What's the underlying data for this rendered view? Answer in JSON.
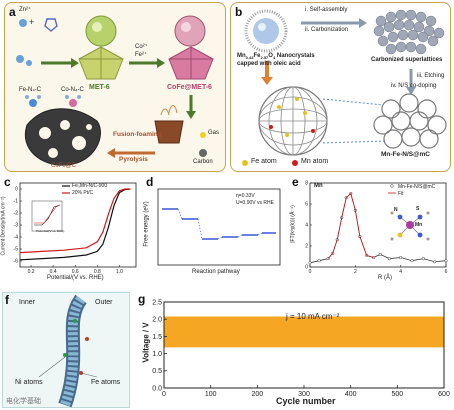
{
  "panels": {
    "a": {
      "label": "a",
      "zn": "Zn²⁺",
      "met6": "MET-6",
      "co_fe": "Co²⁺\nFe²⁺",
      "cofe_met6": "CoFe@MET-6",
      "fe_n4": "Fe-N₄-C",
      "co_n4": "Co-N₄-C",
      "gas": "Gas",
      "carbon": "Carbon",
      "fusion": "Fusion-foaming",
      "pyrolysis": "Pyrolysis",
      "product": "CoFe@C"
    },
    "b": {
      "label": "b",
      "nano_line1": "Mn",
      "nano_sub1": "0.43",
      "nano_mid": "Fe",
      "nano_sub2": "2.57",
      "nano_end": "O",
      "nano_sub3": "4",
      "nano_line2": "Nanocrystals",
      "nano_line3": "capped with oleic acid",
      "step1": "i. Self-assembly",
      "step2": "ii. Carbonization",
      "superlattice": "Carbonized superlattices",
      "step3": "iii. Etching",
      "step4": "iv. N/S co-doping",
      "product": "Mn-Fe-N/S@mC",
      "legend_fe": "Fe atom",
      "legend_mn": "Mn atom",
      "colors": {
        "fe": "#e8c21a",
        "mn": "#d11a1a"
      }
    },
    "c": {
      "label": "c",
      "ylabel": "Current Density/(mA cm⁻²)",
      "xlabel": "Potential/(V vs. RHE)",
      "legend": [
        "Fe₃Mn-N/C-900",
        "20% Pt/C"
      ],
      "xticks": [
        "0.2",
        "0.4",
        "0.6",
        "0.8",
        "1.0"
      ],
      "yticks": [
        "0",
        "-1",
        "-2",
        "-3",
        "-4",
        "-5",
        "-6"
      ],
      "inset_xlabel": "Potential/(V vs. RHE)"
    },
    "d": {
      "label": "d",
      "ylabel": "Free energy (eV)",
      "xlabel": "Reaction pathway",
      "note1": "η=0.33V",
      "note2": "U=0.90V vs RHE"
    },
    "e": {
      "label": "e",
      "element": "Mn",
      "ylabel": "|FT(k³χ(k))| (Å⁻⁴)",
      "xlabel": "R (Å)",
      "legend": [
        "Mn-Fe-N/S@mC",
        "Fit"
      ],
      "xticks": [
        "0",
        "2",
        "4",
        "6"
      ],
      "yticks": [
        "0",
        "2",
        "4",
        "6",
        "8"
      ],
      "atom_n": "N",
      "atom_s": "S",
      "atom_mn": "Mn"
    },
    "f": {
      "label": "f",
      "inner": "Inner",
      "outer": "Outer",
      "ni": "Ni atoms",
      "fe": "Fe atoms"
    },
    "g": {
      "label": "g",
      "ylabel": "Voltage / V",
      "xlabel": "Cycle number",
      "annotation": "j = 10 mA cm⁻²",
      "xticks": [
        "0",
        "100",
        "200",
        "300",
        "400",
        "500",
        "600"
      ],
      "yticks": [
        "0.0",
        "0.5",
        "1.0",
        "1.5",
        "2.0",
        "2.5"
      ],
      "band_color": "#f5a623"
    }
  },
  "watermark": "电化学基础",
  "chart_data": [
    {
      "type": "line",
      "panel": "c",
      "xlabel": "Potential/(V vs. RHE)",
      "ylabel": "Current Density/(mA cm⁻²)",
      "xlim": [
        0.1,
        1.15
      ],
      "ylim": [
        -6.5,
        0.5
      ],
      "series": [
        {
          "name": "Fe₃Mn-N/C-900",
          "x": [
            0.1,
            0.3,
            0.5,
            0.7,
            0.8,
            0.85,
            0.9,
            0.95,
            1.0,
            1.05,
            1.1
          ],
          "y": [
            -5.9,
            -5.8,
            -5.7,
            -5.5,
            -5.2,
            -4.6,
            -3.2,
            -1.4,
            -0.3,
            -0.05,
            0
          ]
        },
        {
          "name": "20% Pt/C",
          "x": [
            0.1,
            0.3,
            0.5,
            0.7,
            0.8,
            0.85,
            0.9,
            0.95,
            1.0,
            1.05,
            1.1
          ],
          "y": [
            -5.3,
            -5.2,
            -5.1,
            -4.9,
            -4.4,
            -3.6,
            -2.1,
            -0.8,
            -0.15,
            0,
            0
          ]
        }
      ]
    },
    {
      "type": "line",
      "panel": "e",
      "xlabel": "R (Å)",
      "ylabel": "|FT(k³χ(k))| (Å⁻⁴)",
      "xlim": [
        0,
        6
      ],
      "ylim": [
        0,
        8
      ],
      "series": [
        {
          "name": "Mn-Fe-N/S@mC",
          "x": [
            0,
            0.4,
            0.8,
            1.0,
            1.2,
            1.4,
            1.6,
            1.8,
            2.0,
            2.2,
            2.5,
            2.8,
            3.1,
            3.5,
            4.0,
            4.5,
            5.0,
            5.5,
            6.0
          ],
          "y": [
            0.4,
            0.6,
            0.8,
            1.3,
            2.6,
            4.7,
            6.6,
            7.0,
            5.4,
            2.9,
            1.1,
            0.9,
            1.2,
            0.8,
            0.9,
            0.6,
            0.8,
            0.5,
            0.6
          ]
        },
        {
          "name": "Fit",
          "x": [
            0.8,
            1.0,
            1.2,
            1.4,
            1.6,
            1.8,
            2.0,
            2.2,
            2.5,
            2.8
          ],
          "y": [
            0.8,
            1.3,
            2.6,
            4.7,
            6.6,
            7.0,
            5.4,
            2.9,
            1.1,
            0.9
          ]
        }
      ]
    },
    {
      "type": "area",
      "panel": "g",
      "xlabel": "Cycle number",
      "ylabel": "Voltage / V",
      "xlim": [
        0,
        600
      ],
      "ylim": [
        0.0,
        2.5
      ],
      "series": [
        {
          "name": "",
          "x": [
            0,
            600
          ],
          "upper": [
            2.08,
            2.08
          ],
          "lower": [
            1.18,
            1.18
          ]
        }
      ]
    }
  ]
}
